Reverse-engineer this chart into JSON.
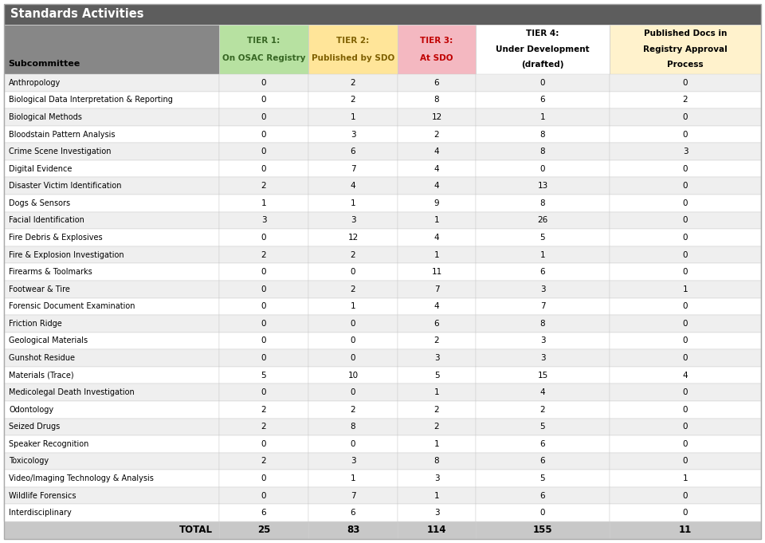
{
  "title": "Standards Activities",
  "title_bg": "#5d5d5d",
  "title_color": "#ffffff",
  "col_headers_line1": [
    "TIER 1:",
    "TIER 2:",
    "TIER 3:",
    "TIER 4:",
    "Published Docs in"
  ],
  "col_headers_line2": [
    "On OSAC Registry",
    "Published by SDO",
    "At SDO",
    "Under Development",
    "Registry Approval"
  ],
  "col_headers_line3": [
    "",
    "",
    "",
    "(drafted)",
    "Process"
  ],
  "col_header_colors": [
    "#b7e1a1",
    "#ffe599",
    "#f4b8c1",
    "#ffffff",
    "#fff2cc"
  ],
  "col_header_text_colors": [
    "#376623",
    "#7f6000",
    "#c00000",
    "#000000",
    "#000000"
  ],
  "subcommittee_label": "Subcommittee",
  "subcommittees": [
    "Anthropology",
    "Biological Data Interpretation & Reporting",
    "Biological Methods",
    "Bloodstain Pattern Analysis",
    "Crime Scene Investigation",
    "Digital Evidence",
    "Disaster Victim Identification",
    "Dogs & Sensors",
    "Facial Identification",
    "Fire Debris & Explosives",
    "Fire & Explosion Investigation",
    "Firearms & Toolmarks",
    "Footwear & Tire",
    "Forensic Document Examination",
    "Friction Ridge",
    "Geological Materials",
    "Gunshot Residue",
    "Materials (Trace)",
    "Medicolegal Death Investigation",
    "Odontology",
    "Seized Drugs",
    "Speaker Recognition",
    "Toxicology",
    "Video/Imaging Technology & Analysis",
    "Wildlife Forensics",
    "Interdisciplinary"
  ],
  "data": [
    [
      0,
      2,
      6,
      0,
      0
    ],
    [
      0,
      2,
      8,
      6,
      2
    ],
    [
      0,
      1,
      12,
      1,
      0
    ],
    [
      0,
      3,
      2,
      8,
      0
    ],
    [
      0,
      6,
      4,
      8,
      3
    ],
    [
      0,
      7,
      4,
      0,
      0
    ],
    [
      2,
      4,
      4,
      13,
      0
    ],
    [
      1,
      1,
      9,
      8,
      0
    ],
    [
      3,
      3,
      1,
      26,
      0
    ],
    [
      0,
      12,
      4,
      5,
      0
    ],
    [
      2,
      2,
      1,
      1,
      0
    ],
    [
      0,
      0,
      11,
      6,
      0
    ],
    [
      0,
      2,
      7,
      3,
      1
    ],
    [
      0,
      1,
      4,
      7,
      0
    ],
    [
      0,
      0,
      6,
      8,
      0
    ],
    [
      0,
      0,
      2,
      3,
      0
    ],
    [
      0,
      0,
      3,
      3,
      0
    ],
    [
      5,
      10,
      5,
      15,
      4
    ],
    [
      0,
      0,
      1,
      4,
      0
    ],
    [
      2,
      2,
      2,
      2,
      0
    ],
    [
      2,
      8,
      2,
      5,
      0
    ],
    [
      0,
      0,
      1,
      6,
      0
    ],
    [
      2,
      3,
      8,
      6,
      0
    ],
    [
      0,
      1,
      3,
      5,
      1
    ],
    [
      0,
      7,
      1,
      6,
      0
    ],
    [
      6,
      6,
      3,
      0,
      0
    ]
  ],
  "totals": [
    25,
    83,
    114,
    155,
    11
  ],
  "total_label": "TOTAL",
  "total_bg": "#c8c8c8",
  "header_bg": "#878787",
  "alt_row_bg": "#efefef",
  "row_bg": "#ffffff",
  "grid_color": "#cccccc",
  "border_color": "#aaaaaa"
}
